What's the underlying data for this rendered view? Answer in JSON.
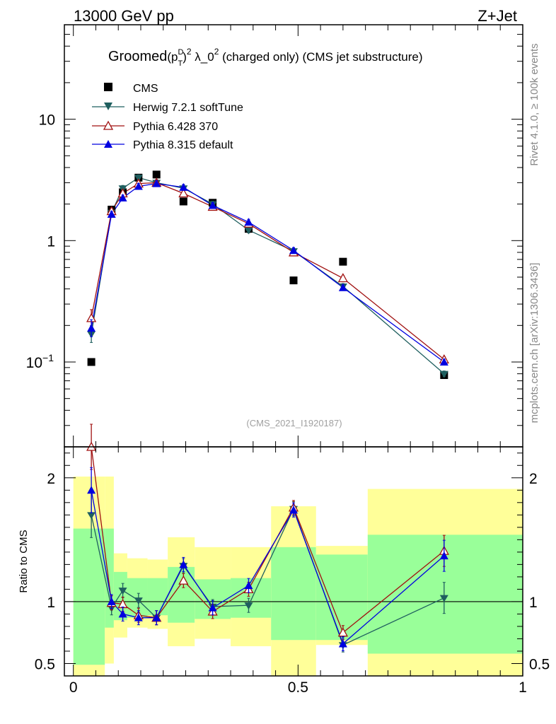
{
  "header": {
    "left": "13000 GeV pp",
    "right": "Z+Jet"
  },
  "side_labels": {
    "rivet": "Rivet 4.1.0, ≥ 100k events",
    "mcplots": "mcplots.cern.ch [arXiv:1306.3436]"
  },
  "analysis_id": "(CMS_2021_I1920187)",
  "colors": {
    "cms": "#000000",
    "herwig": "#1f5f5f",
    "pythia6": "#a01010",
    "pythia8": "#0000e0",
    "band_inner": "#99ff99",
    "band_outer": "#ffff99",
    "analysis_id": "#a0a0a0",
    "side": "#888888"
  },
  "chart_data": [
    {
      "type": "line",
      "panel": "main",
      "title_parts": {
        "t1": "Groomed",
        "t2": "(p",
        "t3": "D",
        "t4": "T",
        "t5": ")",
        "t6": "2",
        "t7": " λ_0",
        "t8": "2",
        "t9": "  (charged only) (CMS jet substructure)"
      },
      "yscale": "log",
      "ylim": [
        0.02,
        60
      ],
      "xlim": [
        -0.02,
        1.0
      ],
      "yticks": [
        {
          "value": 0.1,
          "base": "10",
          "exp": "−1"
        },
        {
          "value": 1,
          "base": "1",
          "exp": ""
        },
        {
          "value": 10,
          "base": "10",
          "exp": ""
        }
      ],
      "legend": [
        "CMS",
        "Herwig 7.2.1 softTune",
        "Pythia 6.428 370",
        "Pythia 8.315 default"
      ],
      "series": [
        {
          "name": "CMS",
          "key": "cms",
          "x": [
            0.04,
            0.085,
            0.11,
            0.145,
            0.185,
            0.245,
            0.31,
            0.39,
            0.49,
            0.6,
            0.825
          ],
          "values": [
            0.1,
            1.8,
            2.5,
            3.3,
            3.5,
            2.1,
            2.05,
            1.25,
            0.47,
            0.67,
            0.078
          ]
        },
        {
          "name": "Herwig 7.2.1 softTune",
          "key": "herwig",
          "x": [
            0.04,
            0.085,
            0.11,
            0.145,
            0.185,
            0.245,
            0.31,
            0.39,
            0.49,
            0.6,
            0.825
          ],
          "values": [
            0.17,
            1.7,
            2.7,
            3.3,
            3.0,
            2.7,
            2.0,
            1.22,
            0.82,
            0.42,
            0.08
          ]
        },
        {
          "name": "Pythia 6.428 370",
          "key": "pythia6",
          "x": [
            0.04,
            0.085,
            0.11,
            0.145,
            0.185,
            0.245,
            0.31,
            0.39,
            0.49,
            0.6,
            0.825
          ],
          "values": [
            0.23,
            1.75,
            2.45,
            2.95,
            3.0,
            2.45,
            1.9,
            1.38,
            0.8,
            0.49,
            0.105
          ]
        },
        {
          "name": "Pythia 8.315 default",
          "key": "pythia8",
          "x": [
            0.04,
            0.085,
            0.11,
            0.145,
            0.185,
            0.245,
            0.31,
            0.39,
            0.49,
            0.6,
            0.825
          ],
          "values": [
            0.19,
            1.65,
            2.25,
            2.8,
            2.95,
            2.75,
            1.95,
            1.42,
            0.83,
            0.41,
            0.1
          ]
        }
      ]
    },
    {
      "type": "line",
      "panel": "ratio",
      "ylabel": "Ratio to CMS",
      "xlim": [
        -0.02,
        1.0
      ],
      "ylim": [
        0.4,
        2.25
      ],
      "xticks": [
        {
          "value": 0,
          "label": "0"
        },
        {
          "value": 0.5,
          "label": "0.5"
        },
        {
          "value": 1,
          "label": "1"
        }
      ],
      "yticks": [
        {
          "value": 0.5,
          "label": "0.5"
        },
        {
          "value": 1,
          "label": "1"
        },
        {
          "value": 2,
          "label": "2"
        }
      ],
      "bins": [
        {
          "lo": 0.0,
          "hi": 0.07,
          "inner": [
            0.49,
            1.59
          ],
          "outer": [
            0.38,
            2.01
          ]
        },
        {
          "lo": 0.07,
          "hi": 0.09,
          "inner": [
            0.79,
            1.59
          ],
          "outer": [
            0.5,
            2.01
          ]
        },
        {
          "lo": 0.09,
          "hi": 0.12,
          "inner": [
            0.85,
            1.24
          ],
          "outer": [
            0.71,
            1.39
          ]
        },
        {
          "lo": 0.12,
          "hi": 0.165,
          "inner": [
            0.87,
            1.19
          ],
          "outer": [
            0.79,
            1.35
          ]
        },
        {
          "lo": 0.165,
          "hi": 0.21,
          "inner": [
            0.89,
            1.19
          ],
          "outer": [
            0.78,
            1.34
          ]
        },
        {
          "lo": 0.21,
          "hi": 0.27,
          "inner": [
            0.83,
            1.28
          ],
          "outer": [
            0.64,
            1.52
          ]
        },
        {
          "lo": 0.27,
          "hi": 0.35,
          "inner": [
            0.86,
            1.18
          ],
          "outer": [
            0.7,
            1.44
          ]
        },
        {
          "lo": 0.35,
          "hi": 0.44,
          "inner": [
            0.87,
            1.19
          ],
          "outer": [
            0.64,
            1.44
          ]
        },
        {
          "lo": 0.44,
          "hi": 0.54,
          "inner": [
            0.69,
            1.44
          ],
          "outer": [
            0.38,
            1.77
          ]
        },
        {
          "lo": 0.54,
          "hi": 0.655,
          "inner": [
            0.69,
            1.38
          ],
          "outer": [
            0.65,
            1.45
          ]
        },
        {
          "lo": 0.655,
          "hi": 1.0,
          "inner": [
            0.58,
            1.54
          ],
          "outer": [
            0.39,
            1.91
          ]
        }
      ],
      "series": [
        {
          "name": "Herwig 7.2.1 softTune",
          "key": "herwig",
          "x": [
            0.04,
            0.085,
            0.11,
            0.145,
            0.185,
            0.245,
            0.31,
            0.39,
            0.49,
            0.6,
            0.825
          ],
          "values": [
            1.7,
            0.95,
            1.09,
            1.01,
            0.87,
            1.29,
            0.96,
            0.97,
            1.75,
            0.65,
            1.03
          ]
        },
        {
          "name": "Pythia 6.428 370",
          "key": "pythia6",
          "x": [
            0.04,
            0.085,
            0.11,
            0.145,
            0.185,
            0.245,
            0.31,
            0.39,
            0.49,
            0.6,
            0.825
          ],
          "values": [
            2.25,
            0.99,
            0.98,
            0.89,
            0.87,
            1.17,
            0.92,
            1.1,
            1.76,
            0.75,
            1.41
          ]
        },
        {
          "name": "Pythia 8.315 default",
          "key": "pythia8",
          "x": [
            0.04,
            0.085,
            0.11,
            0.145,
            0.185,
            0.245,
            0.31,
            0.39,
            0.49,
            0.6,
            0.825
          ],
          "values": [
            1.9,
            1.0,
            0.9,
            0.87,
            0.87,
            1.3,
            0.95,
            1.13,
            1.74,
            0.66,
            1.37
          ]
        }
      ]
    }
  ]
}
